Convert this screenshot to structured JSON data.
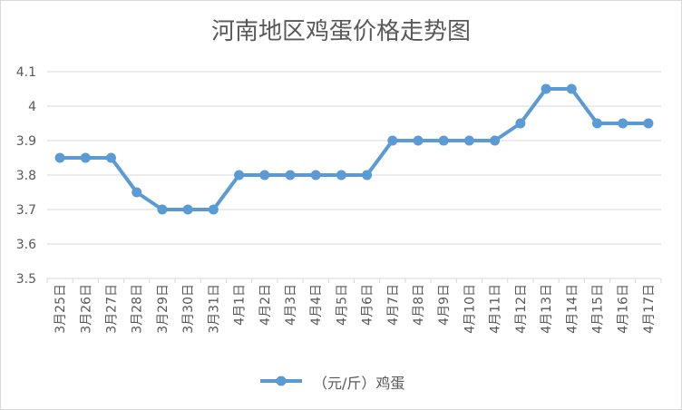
{
  "chart_data": {
    "type": "line",
    "title": "河南地区鸡蛋价格走势图",
    "categories": [
      "3月25日",
      "3月26日",
      "3月27日",
      "3月28日",
      "3月29日",
      "3月30日",
      "3月31日",
      "4月1日",
      "4月2日",
      "4月3日",
      "4月4日",
      "4月5日",
      "4月6日",
      "4月7日",
      "4月8日",
      "4月9日",
      "4月10日",
      "4月11日",
      "4月12日",
      "4月13日",
      "4月14日",
      "4月15日",
      "4月16日",
      "4月17日"
    ],
    "series": [
      {
        "name": "（元/斤）鸡蛋",
        "values": [
          3.85,
          3.85,
          3.85,
          3.75,
          3.7,
          3.7,
          3.7,
          3.8,
          3.8,
          3.8,
          3.8,
          3.8,
          3.8,
          3.9,
          3.9,
          3.9,
          3.9,
          3.9,
          3.95,
          4.05,
          4.05,
          3.95,
          3.95,
          3.95
        ],
        "color": "#5b9bd5"
      }
    ],
    "yticks": [
      "3.5",
      "3.6",
      "3.7",
      "3.8",
      "3.9",
      "4",
      "4.1"
    ],
    "ylim": [
      3.5,
      4.1
    ],
    "grid": true,
    "legend_position": "bottom"
  }
}
